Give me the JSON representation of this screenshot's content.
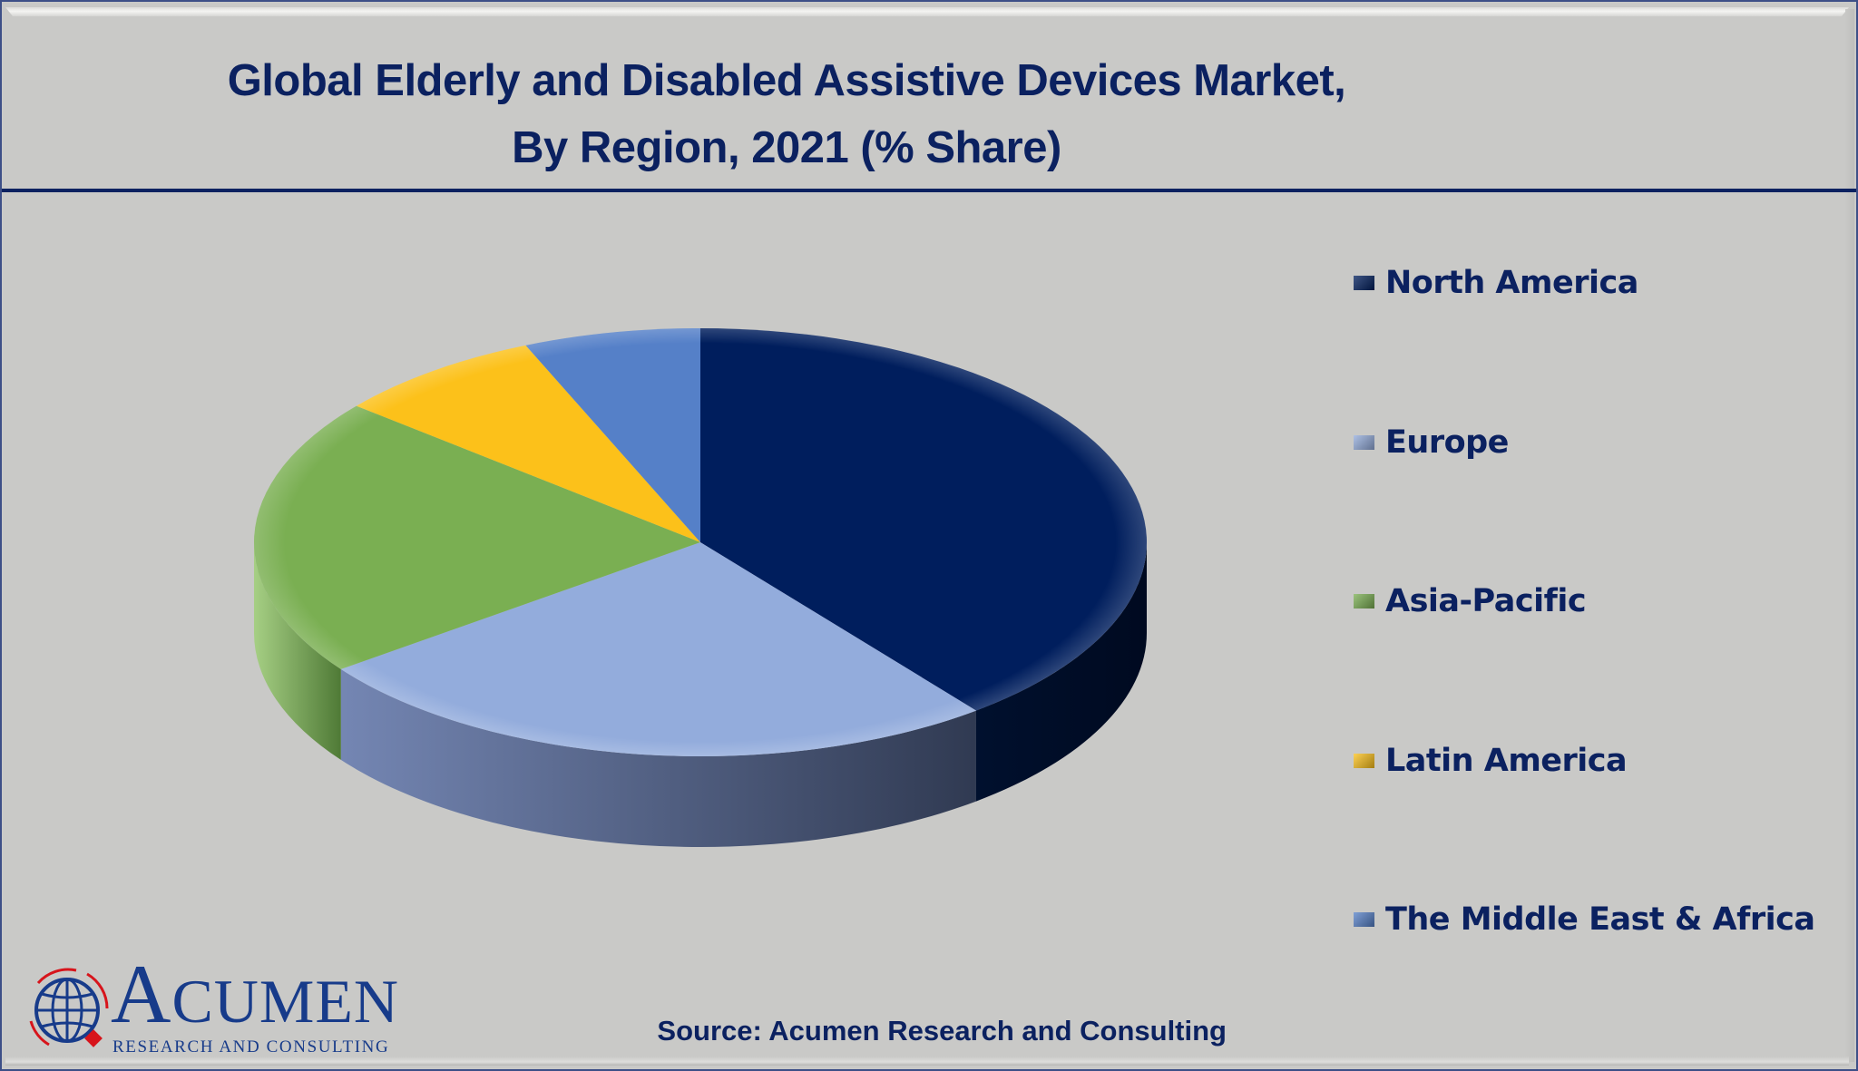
{
  "chart_data": {
    "type": "pie",
    "title": "Global Elderly and Disabled Assistive Devices Market, By Region, 2021 (% Share)",
    "title_lines": [
      "Global Elderly and Disabled Assistive Devices Market,",
      "By Region, 2021 (% Share)"
    ],
    "style": "3d",
    "start_angle": "12 o'clock, clockwise",
    "legend_position": "right",
    "data_labels": false,
    "slices": [
      {
        "label": "North America",
        "value": 39.4,
        "color": "#001e5d"
      },
      {
        "label": "Europe",
        "value": 25.5,
        "color": "#93acdc"
      },
      {
        "label": "Asia-Pacific",
        "value": 21.1,
        "color": "#7aaf52"
      },
      {
        "label": "Latin America",
        "value": 7.6,
        "color": "#fcc11a"
      },
      {
        "label": "The Middle East & Africa",
        "value": 6.4,
        "color": "#5580c8"
      }
    ],
    "unit": "%"
  },
  "source": "Source: Acumen Research and Consulting",
  "logo": {
    "initial": "A",
    "word": "CUMEN",
    "tagline": "RESEARCH AND CONSULTING",
    "icon": "globe-icon"
  },
  "colors": {
    "background": "#c9c9c7",
    "title_text": "#0b2160",
    "accent": "#0b2160",
    "logo_blue": "#173b8a",
    "logo_red": "#d7141b"
  }
}
